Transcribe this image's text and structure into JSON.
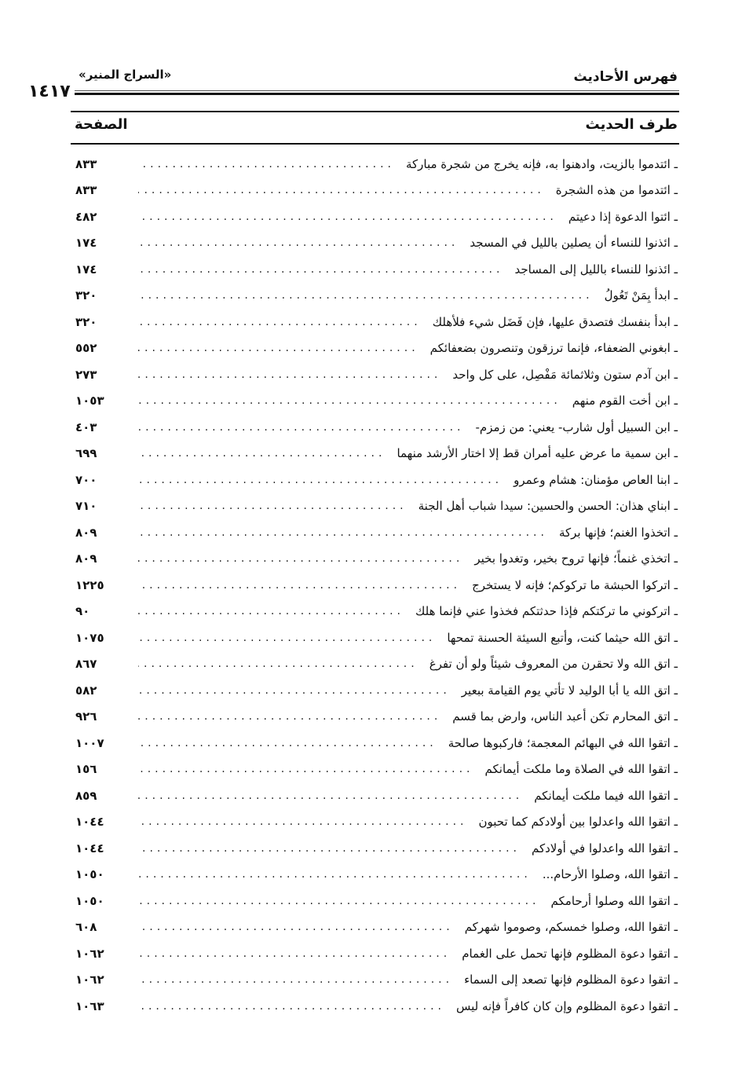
{
  "header": {
    "section_title": "فهرس الأحاديث",
    "book_title": "«السراج المنير»",
    "page_number": "١٤١٧"
  },
  "columns": {
    "hadith": "طرف الحديث",
    "page": "الصفحة"
  },
  "rows": [
    {
      "text": "ـ ائتدموا بالزيت، وادهنوا به، فإنه يخرج من شجرة مباركة",
      "page": "٨٣٣"
    },
    {
      "text": "ـ ائتدموا من هذه الشجرة",
      "page": "٨٣٣"
    },
    {
      "text": "ـ ائتوا الدعوة إذا دعيتم",
      "page": "٤٨٢"
    },
    {
      "text": "ـ ائذنوا للنساء أن يصلين بالليل في المسجد",
      "page": "١٧٤"
    },
    {
      "text": "ـ ائذنوا للنساء بالليل إلى المساجد",
      "page": "١٧٤"
    },
    {
      "text": "ـ ابدأ بِمَنْ تَعُولُ",
      "page": "٣٢٠"
    },
    {
      "text": "ـ ابدأ بنفسك فتصدق عليها، فإن فَضَل شيء فلأهلك",
      "page": "٣٢٠"
    },
    {
      "text": "ـ ابغوني الضعفاء، فإنما ترزقون وتنصرون بضعفائكم",
      "page": "٥٥٢"
    },
    {
      "text": "ـ ابن آدم ستون وثلاثمائة مَفْصِل، على كل واحد",
      "page": "٢٧٣"
    },
    {
      "text": "ـ ابن أخت القوم منهم",
      "page": "١٠٥٣"
    },
    {
      "text": "ـ ابن السبيل أول شارب- يعني: من زمزم-",
      "page": "٤٠٣"
    },
    {
      "text": "ـ ابن سمية ما عرض عليه أمران قط إلا اختار الأرشد منهما",
      "page": "٦٩٩"
    },
    {
      "text": "ـ ابنا العاص مؤمنان: هشام وعمرو",
      "page": "٧٠٠"
    },
    {
      "text": "ـ ابناي هذان: الحسن والحسين: سيدا شباب أهل الجنة",
      "page": "٧١٠"
    },
    {
      "text": "ـ اتخذوا الغنم؛ فإنها بركة",
      "page": "٨٠٩"
    },
    {
      "text": "ـ اتخذي غنماً؛ فإنها تروح بخير، وتغدوا بخير",
      "page": "٨٠٩"
    },
    {
      "text": "ـ اتركوا الحبشة ما تركوكم؛ فإنه لا يستخرج",
      "page": "١٢٢٥"
    },
    {
      "text": "ـ اتركوني ما تركتكم فإذا حدثتكم فخذوا عني فإنما هلك",
      "page": "٩٠"
    },
    {
      "text": "ـ اتق الله حيثما كنت، وأتبع السيئة الحسنة تمحها",
      "page": "١٠٧٥"
    },
    {
      "text": "ـ اتق الله ولا تحقرن من المعروف شيئاً ولو أن تفرغ",
      "page": "٨٦٧"
    },
    {
      "text": "ـ اتق الله يا أبا الوليد لا تأتي يوم القيامة ببعير",
      "page": "٥٨٢"
    },
    {
      "text": "ـ اتق المحارم تكن أعبد الناس، وارض بما قسم",
      "page": "٩٢٦"
    },
    {
      "text": "ـ اتقوا الله في البهائم المعجمة؛ فاركبوها صالحة",
      "page": "١٠٠٧"
    },
    {
      "text": "ـ اتقوا الله في الصلاة وما ملكت أيمانكم",
      "page": "١٥٦"
    },
    {
      "text": "ـ اتقوا الله فيما ملكت أيمانكم",
      "page": "٨٥٩"
    },
    {
      "text": "ـ اتقوا الله واعدلوا بين أولادكم كما تحبون",
      "page": "١٠٤٤"
    },
    {
      "text": "ـ اتقوا الله واعدلوا في أولادكم",
      "page": "١٠٤٤"
    },
    {
      "text": "ـ اتقوا الله، وصلوا الأرحام...",
      "page": "١٠٥٠"
    },
    {
      "text": "ـ اتقوا الله وصلوا أرحامكم",
      "page": "١٠٥٠"
    },
    {
      "text": "ـ اتقوا الله، وصلوا خمسكم، وصوموا شهركم",
      "page": "٦٠٨"
    },
    {
      "text": "ـ اتقوا دعوة المظلوم فإنها تحمل على الغمام",
      "page": "١٠٦٢"
    },
    {
      "text": "ـ اتقوا دعوة المظلوم فإنها تصعد إلى السماء",
      "page": "١٠٦٢"
    },
    {
      "text": "ـ اتقوا دعوة المظلوم وإن كان كافراً فإنه ليس",
      "page": "١٠٦٣"
    }
  ]
}
